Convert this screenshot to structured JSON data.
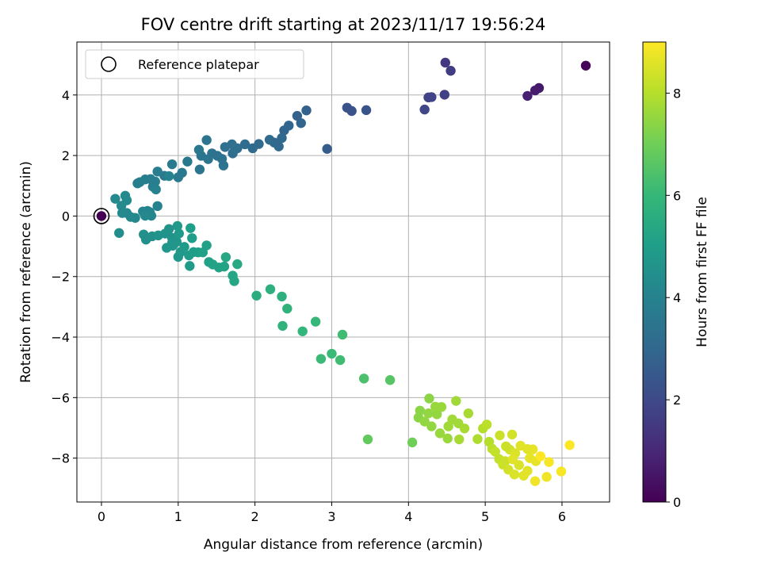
{
  "chart_data": {
    "type": "scatter",
    "title": "FOV centre drift starting at 2023/11/17 19:56:24",
    "xlabel": "Angular distance from reference (arcmin)",
    "ylabel": "Rotation from reference (arcmin)",
    "xlim": [
      -0.32,
      6.62
    ],
    "ylim": [
      -9.45,
      5.75
    ],
    "xticks": [
      0,
      1,
      2,
      3,
      4,
      5,
      6
    ],
    "yticks": [
      -8,
      -6,
      -4,
      -2,
      0,
      2,
      4
    ],
    "grid": true,
    "legend": {
      "placement": "upper-left",
      "entries": [
        {
          "label": "Reference platepar",
          "marker": "open-circle"
        }
      ]
    },
    "reference_point": {
      "x": 0,
      "y": 0,
      "hours": 0
    },
    "colorbar": {
      "label": "Hours from first FF file",
      "colormap": "viridis",
      "range": [
        0,
        9
      ],
      "ticks": [
        0,
        2,
        4,
        6,
        8
      ]
    },
    "points": [
      [
        6.31,
        4.97,
        0.1
      ],
      [
        5.7,
        4.23,
        0.6
      ],
      [
        5.65,
        4.15,
        0.7
      ],
      [
        5.55,
        3.97,
        0.8
      ],
      [
        4.48,
        5.07,
        1.5
      ],
      [
        4.55,
        4.8,
        1.6
      ],
      [
        4.47,
        4.01,
        1.7
      ],
      [
        4.3,
        3.93,
        1.8
      ],
      [
        4.26,
        3.92,
        1.8
      ],
      [
        4.21,
        3.52,
        1.9
      ],
      [
        3.2,
        3.58,
        2.3
      ],
      [
        3.26,
        3.47,
        2.3
      ],
      [
        3.45,
        3.5,
        2.3
      ],
      [
        2.94,
        2.22,
        2.6
      ],
      [
        2.67,
        3.49,
        2.8
      ],
      [
        2.55,
        3.31,
        2.8
      ],
      [
        2.6,
        3.07,
        2.9
      ],
      [
        2.44,
        2.99,
        2.9
      ],
      [
        2.38,
        2.83,
        2.9
      ],
      [
        2.35,
        2.58,
        3.0
      ],
      [
        2.31,
        2.3,
        3.0
      ],
      [
        2.25,
        2.43,
        3.0
      ],
      [
        2.19,
        2.52,
        3.1
      ],
      [
        2.05,
        2.38,
        3.1
      ],
      [
        1.97,
        2.24,
        3.1
      ],
      [
        1.87,
        2.37,
        3.2
      ],
      [
        1.77,
        2.24,
        3.2
      ],
      [
        1.71,
        2.07,
        3.2
      ],
      [
        1.75,
        2.22,
        3.3
      ],
      [
        1.7,
        2.37,
        3.3
      ],
      [
        1.61,
        2.28,
        3.3
      ],
      [
        1.57,
        1.89,
        3.4
      ],
      [
        1.59,
        1.67,
        3.4
      ],
      [
        1.51,
        1.99,
        3.4
      ],
      [
        1.44,
        2.07,
        3.4
      ],
      [
        1.39,
        1.88,
        3.5
      ],
      [
        1.3,
        1.99,
        3.5
      ],
      [
        1.28,
        1.54,
        3.5
      ],
      [
        1.37,
        2.51,
        3.5
      ],
      [
        1.27,
        2.19,
        3.6
      ],
      [
        1.12,
        1.8,
        3.6
      ],
      [
        1.05,
        1.43,
        3.6
      ],
      [
        1.0,
        1.28,
        3.7
      ],
      [
        0.92,
        1.71,
        3.7
      ],
      [
        0.82,
        1.33,
        3.7
      ],
      [
        0.73,
        1.47,
        3.8
      ],
      [
        0.64,
        1.22,
        3.8
      ],
      [
        0.7,
        1.14,
        3.8
      ],
      [
        0.57,
        1.21,
        3.9
      ],
      [
        0.5,
        1.12,
        3.9
      ],
      [
        0.47,
        1.08,
        3.9
      ],
      [
        0.67,
        0.97,
        3.9
      ],
      [
        0.71,
        0.88,
        4.0
      ],
      [
        0.88,
        1.32,
        4.0
      ],
      [
        0.73,
        0.33,
        4.0
      ],
      [
        0.6,
        0.17,
        4.1
      ],
      [
        0.54,
        0.15,
        4.1
      ],
      [
        0.63,
        0.13,
        4.1
      ],
      [
        0.65,
        0.01,
        4.1
      ],
      [
        0.57,
        0.01,
        4.2
      ],
      [
        0.44,
        -0.06,
        4.2
      ],
      [
        0.38,
        -0.03,
        4.2
      ],
      [
        0.33,
        0.1,
        4.2
      ],
      [
        0.26,
        0.34,
        4.3
      ],
      [
        0.27,
        0.1,
        4.3
      ],
      [
        0.33,
        0.52,
        4.3
      ],
      [
        0.31,
        0.67,
        4.3
      ],
      [
        0.18,
        0.57,
        4.3
      ],
      [
        0.23,
        -0.56,
        4.4
      ],
      [
        0.55,
        -0.61,
        4.5
      ],
      [
        0.58,
        -0.78,
        4.5
      ],
      [
        0.66,
        -0.67,
        4.5
      ],
      [
        0.74,
        -0.64,
        4.6
      ],
      [
        0.83,
        -0.58,
        4.6
      ],
      [
        0.88,
        -0.43,
        4.6
      ],
      [
        0.92,
        -0.72,
        4.6
      ],
      [
        0.85,
        -1.05,
        4.7
      ],
      [
        0.93,
        -0.98,
        4.7
      ],
      [
        0.98,
        -0.85,
        4.7
      ],
      [
        0.92,
        -0.89,
        4.7
      ],
      [
        1.0,
        -1.35,
        4.8
      ],
      [
        1.03,
        -1.19,
        4.8
      ],
      [
        1.01,
        -0.58,
        4.8
      ],
      [
        0.99,
        -0.33,
        4.8
      ],
      [
        1.08,
        -1.02,
        4.9
      ],
      [
        1.14,
        -1.3,
        4.9
      ],
      [
        1.15,
        -1.65,
        4.9
      ],
      [
        1.2,
        -1.19,
        5.0
      ],
      [
        1.18,
        -0.73,
        5.0
      ],
      [
        1.16,
        -0.4,
        5.0
      ],
      [
        1.26,
        -1.2,
        5.0
      ],
      [
        1.32,
        -1.2,
        5.1
      ],
      [
        1.37,
        -0.97,
        5.1
      ],
      [
        1.4,
        -1.52,
        5.1
      ],
      [
        1.45,
        -1.6,
        5.2
      ],
      [
        1.53,
        -1.7,
        5.2
      ],
      [
        1.6,
        -1.67,
        5.2
      ],
      [
        1.62,
        -1.36,
        5.3
      ],
      [
        1.71,
        -1.97,
        5.3
      ],
      [
        1.73,
        -2.15,
        5.3
      ],
      [
        1.77,
        -1.59,
        5.4
      ],
      [
        2.02,
        -2.63,
        5.6
      ],
      [
        2.2,
        -2.42,
        5.7
      ],
      [
        2.35,
        -2.66,
        5.7
      ],
      [
        2.42,
        -3.06,
        5.8
      ],
      [
        2.36,
        -3.63,
        5.8
      ],
      [
        2.62,
        -3.81,
        5.9
      ],
      [
        2.79,
        -3.49,
        6.0
      ],
      [
        2.86,
        -4.72,
        6.1
      ],
      [
        3.0,
        -4.55,
        6.1
      ],
      [
        3.11,
        -4.76,
        6.2
      ],
      [
        3.14,
        -3.92,
        6.2
      ],
      [
        3.42,
        -5.37,
        6.4
      ],
      [
        3.76,
        -5.42,
        6.6
      ],
      [
        3.47,
        -7.38,
        6.8
      ],
      [
        4.05,
        -7.48,
        7.0
      ],
      [
        4.27,
        -6.03,
        7.4
      ],
      [
        4.15,
        -6.43,
        7.4
      ],
      [
        4.13,
        -6.66,
        7.4
      ],
      [
        4.21,
        -6.79,
        7.5
      ],
      [
        4.26,
        -6.52,
        7.5
      ],
      [
        4.3,
        -6.95,
        7.5
      ],
      [
        4.37,
        -6.55,
        7.5
      ],
      [
        4.35,
        -6.3,
        7.6
      ],
      [
        4.43,
        -6.31,
        7.6
      ],
      [
        4.41,
        -7.18,
        7.6
      ],
      [
        4.51,
        -7.35,
        7.6
      ],
      [
        4.52,
        -6.95,
        7.7
      ],
      [
        4.57,
        -6.72,
        7.7
      ],
      [
        4.62,
        -6.11,
        7.7
      ],
      [
        4.65,
        -6.85,
        7.7
      ],
      [
        4.66,
        -7.38,
        7.8
      ],
      [
        4.73,
        -7.02,
        7.8
      ],
      [
        4.78,
        -6.52,
        7.8
      ],
      [
        4.9,
        -7.37,
        7.9
      ],
      [
        4.97,
        -7.02,
        8.0
      ],
      [
        5.05,
        -7.46,
        8.0
      ],
      [
        5.09,
        -7.69,
        8.1
      ],
      [
        5.02,
        -6.89,
        8.1
      ],
      [
        5.13,
        -7.79,
        8.2
      ],
      [
        5.18,
        -8.03,
        8.2
      ],
      [
        5.19,
        -7.25,
        8.3
      ],
      [
        5.23,
        -8.21,
        8.3
      ],
      [
        5.26,
        -8.1,
        8.3
      ],
      [
        5.3,
        -8.38,
        8.4
      ],
      [
        5.32,
        -7.72,
        8.4
      ],
      [
        5.35,
        -7.22,
        8.4
      ],
      [
        5.38,
        -8.54,
        8.5
      ],
      [
        5.39,
        -7.84,
        8.5
      ],
      [
        5.44,
        -8.23,
        8.5
      ],
      [
        5.46,
        -7.59,
        8.6
      ],
      [
        5.5,
        -8.58,
        8.6
      ],
      [
        5.55,
        -8.42,
        8.6
      ],
      [
        5.58,
        -8.0,
        8.7
      ],
      [
        5.62,
        -7.71,
        8.7
      ],
      [
        5.66,
        -8.1,
        8.7
      ],
      [
        5.65,
        -8.76,
        8.8
      ],
      [
        5.8,
        -8.62,
        8.8
      ],
      [
        5.83,
        -8.13,
        8.9
      ],
      [
        5.99,
        -8.44,
        8.9
      ],
      [
        6.1,
        -7.57,
        9.0
      ],
      [
        5.72,
        -7.94,
        9.0
      ],
      [
        5.36,
        -8.04,
        8.6
      ],
      [
        5.55,
        -7.7,
        8.6
      ],
      [
        5.27,
        -7.61,
        8.3
      ]
    ]
  }
}
